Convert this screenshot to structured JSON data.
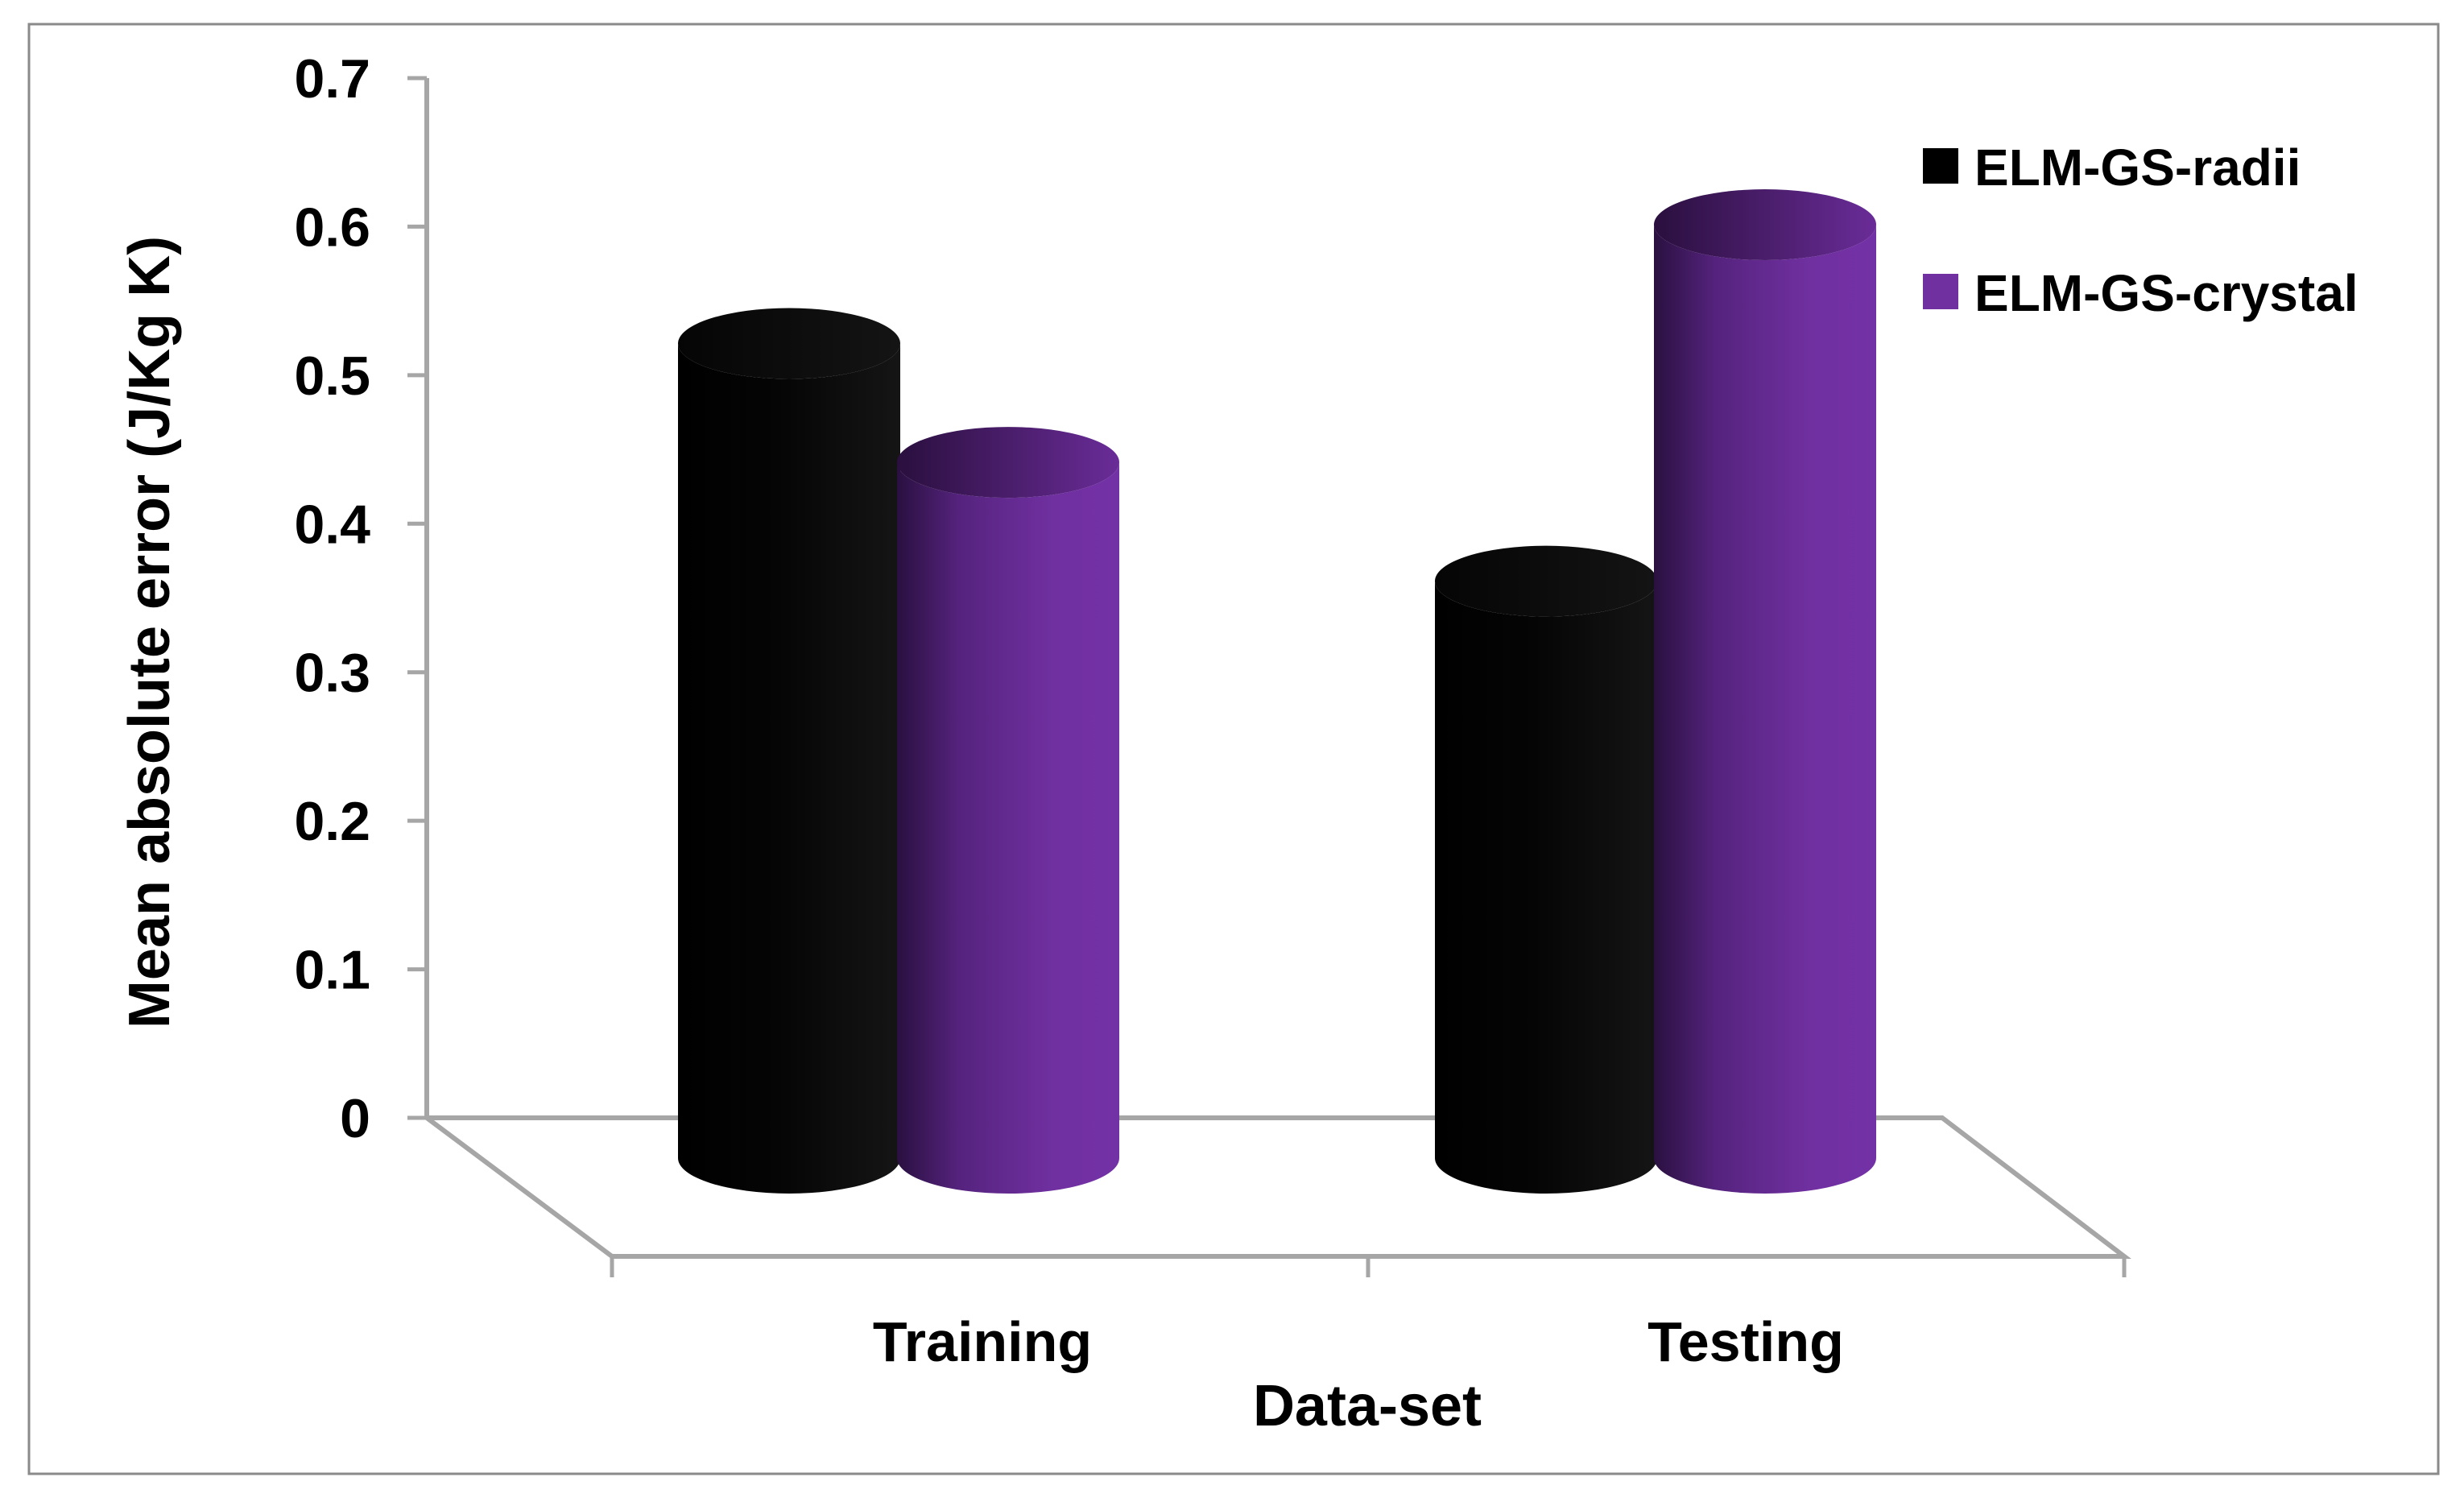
{
  "chart_data": {
    "type": "bar",
    "style": "3d-cylinder",
    "categories": [
      "Training",
      "Testing"
    ],
    "series": [
      {
        "name": "ELM-GS-radii",
        "color": "#000000",
        "values": [
          0.53,
          0.37
        ]
      },
      {
        "name": "ELM-GS-crystal",
        "color": "#7030A0",
        "values": [
          0.45,
          0.61
        ]
      }
    ],
    "y_ticks": [
      "0",
      "0.1",
      "0.2",
      "0.3",
      "0.4",
      "0.5",
      "0.6",
      "0.7"
    ],
    "ylim": [
      0,
      0.7
    ],
    "xlabel": "Data-set",
    "ylabel": "Mean absolute error (J/Kg K)",
    "legend_position": "top-right",
    "grid": false
  }
}
